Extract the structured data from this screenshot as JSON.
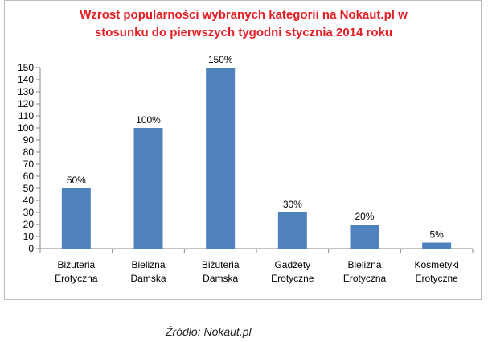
{
  "chart_data": {
    "type": "bar",
    "title_lines": [
      "Wzrost popularności wybranych kategorii na Nokaut.pl w",
      "stosunku do pierwszych tygodni stycznia 2014 roku"
    ],
    "categories": [
      [
        "Biżuteria",
        "Erotyczna"
      ],
      [
        "Bielizna",
        "Damska"
      ],
      [
        "Biżuteria",
        "Damska"
      ],
      [
        "Gadżety",
        "Erotyczne"
      ],
      [
        "Bielizna",
        "Erotyczna"
      ],
      [
        "Kosmetyki",
        "Erotyczne"
      ]
    ],
    "values": [
      50,
      100,
      150,
      30,
      20,
      5
    ],
    "data_labels": [
      "50%",
      "100%",
      "150%",
      "30%",
      "20%",
      "5%"
    ],
    "ylim": [
      0,
      150
    ],
    "yticks": [
      0,
      10,
      20,
      30,
      40,
      50,
      60,
      70,
      80,
      90,
      100,
      110,
      120,
      130,
      140,
      150
    ],
    "grid": false,
    "bar_color": "#4f81bd",
    "title_color": "#e31e24"
  },
  "source_text": "Źródło: Nokaut.pl"
}
